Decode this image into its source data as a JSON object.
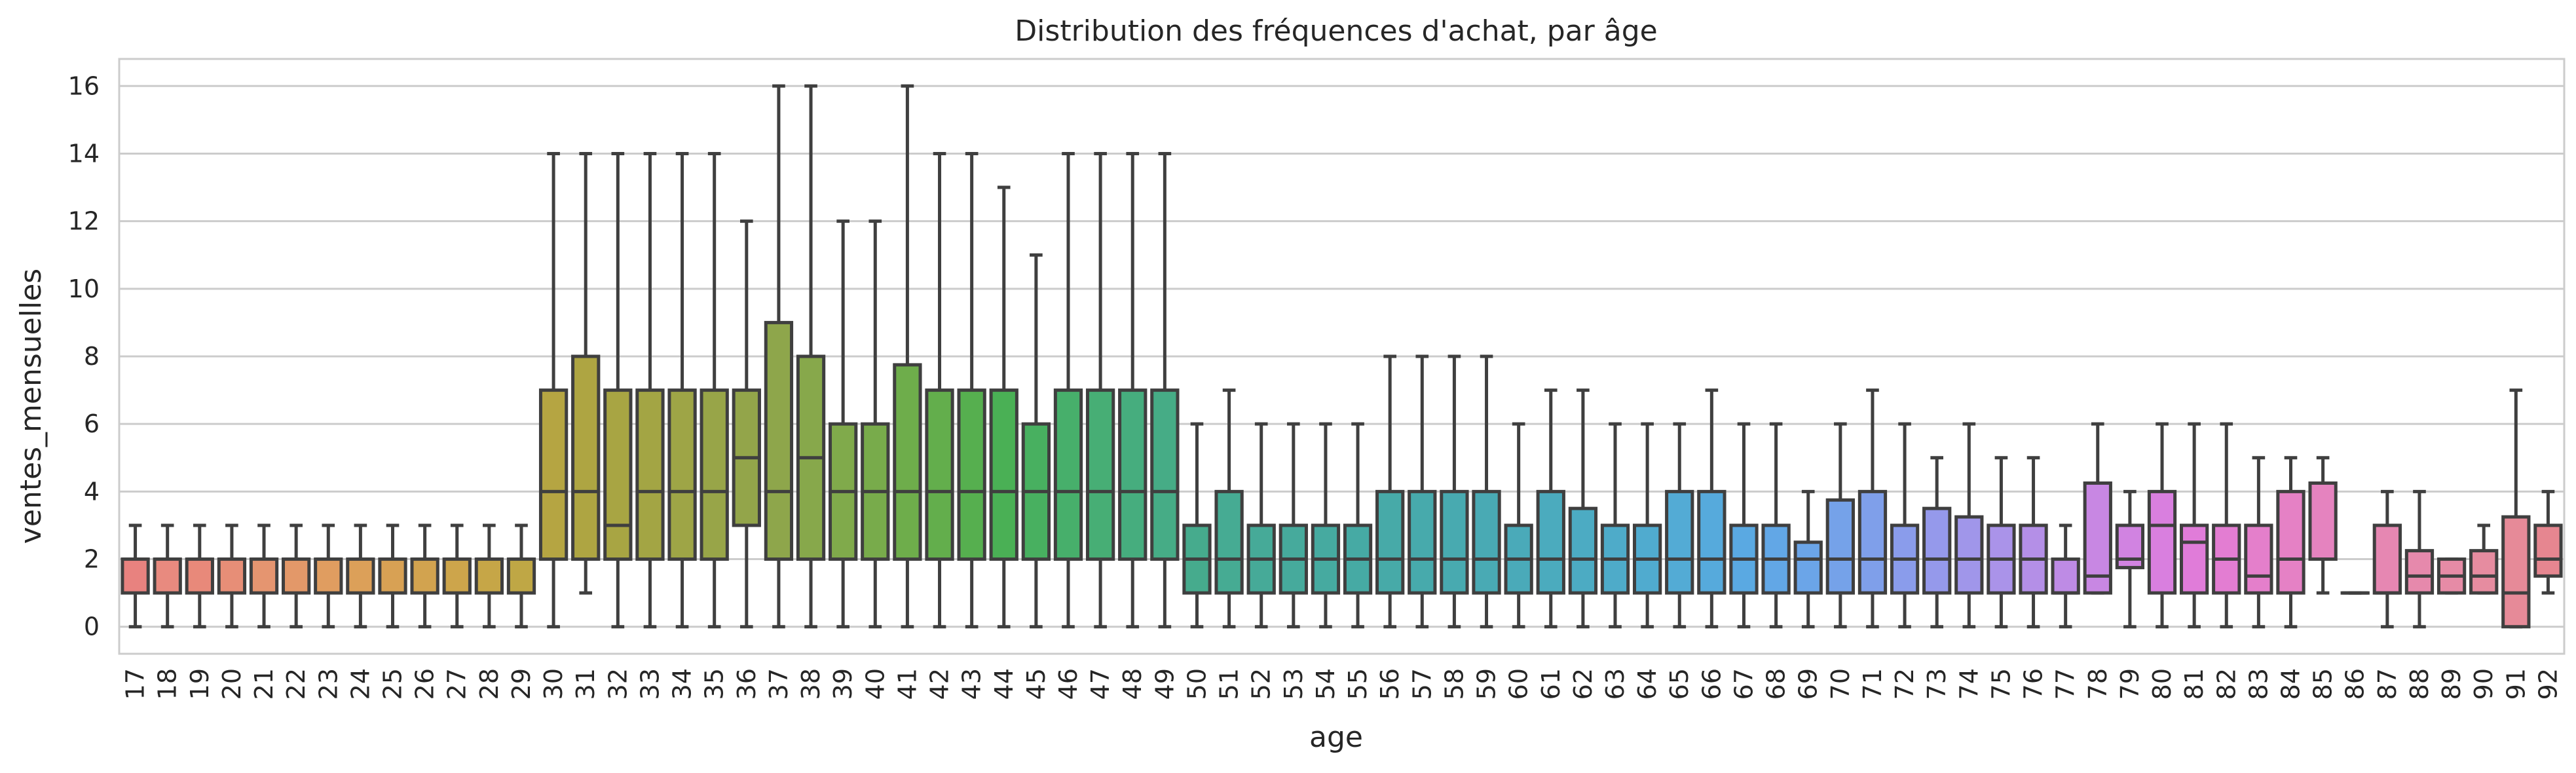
{
  "chart_data": {
    "type": "box",
    "title": "Distribution des fréquences d'achat, par âge",
    "xlabel": "age",
    "ylabel": "ventes_mensuelles",
    "ylim": [
      -0.8,
      16.8
    ],
    "yticks": [
      0,
      2,
      4,
      6,
      8,
      10,
      12,
      14,
      16
    ],
    "grid": "horizontal",
    "categories": [
      "17",
      "18",
      "19",
      "20",
      "21",
      "22",
      "23",
      "24",
      "25",
      "26",
      "27",
      "28",
      "29",
      "30",
      "31",
      "32",
      "33",
      "34",
      "35",
      "36",
      "37",
      "38",
      "39",
      "40",
      "41",
      "42",
      "43",
      "44",
      "45",
      "46",
      "47",
      "48",
      "49",
      "50",
      "51",
      "52",
      "53",
      "54",
      "55",
      "56",
      "57",
      "58",
      "59",
      "60",
      "61",
      "62",
      "63",
      "64",
      "65",
      "66",
      "67",
      "68",
      "69",
      "70",
      "71",
      "72",
      "73",
      "74",
      "75",
      "76",
      "77",
      "78",
      "79",
      "80",
      "81",
      "82",
      "83",
      "84",
      "85",
      "86",
      "87",
      "88",
      "89",
      "90",
      "91",
      "92"
    ],
    "boxes": [
      {
        "age": "17",
        "whislo": 0,
        "q1": 1,
        "med": 2,
        "q3": 2,
        "whishi": 3,
        "color": "#e8827f"
      },
      {
        "age": "18",
        "whislo": 0,
        "q1": 1,
        "med": 2,
        "q3": 2,
        "whishi": 3,
        "color": "#e88a7f"
      },
      {
        "age": "19",
        "whislo": 0,
        "q1": 1,
        "med": 2,
        "q3": 2,
        "whishi": 3,
        "color": "#e8897a"
      },
      {
        "age": "20",
        "whislo": 0,
        "q1": 1,
        "med": 2,
        "q3": 2,
        "whishi": 3,
        "color": "#e78e77"
      },
      {
        "age": "21",
        "whislo": 0,
        "q1": 1,
        "med": 2,
        "q3": 2,
        "whishi": 3,
        "color": "#e59570"
      },
      {
        "age": "22",
        "whislo": 0,
        "q1": 1,
        "med": 2,
        "q3": 2,
        "whishi": 3,
        "color": "#e39869"
      },
      {
        "age": "23",
        "whislo": 0,
        "q1": 1,
        "med": 2,
        "q3": 2,
        "whishi": 3,
        "color": "#e09d60"
      },
      {
        "age": "24",
        "whislo": 0,
        "q1": 1,
        "med": 2,
        "q3": 2,
        "whishi": 3,
        "color": "#dca059"
      },
      {
        "age": "25",
        "whislo": 0,
        "q1": 1,
        "med": 2,
        "q3": 2,
        "whishi": 3,
        "color": "#d8a154"
      },
      {
        "age": "26",
        "whislo": 0,
        "q1": 1,
        "med": 2,
        "q3": 2,
        "whishi": 3,
        "color": "#d2a34f"
      },
      {
        "age": "27",
        "whislo": 0,
        "q1": 1,
        "med": 2,
        "q3": 2,
        "whishi": 3,
        "color": "#cda54b"
      },
      {
        "age": "28",
        "whislo": 0,
        "q1": 1,
        "med": 2,
        "q3": 2,
        "whishi": 3,
        "color": "#c6a647"
      },
      {
        "age": "29",
        "whislo": 0,
        "q1": 1,
        "med": 2,
        "q3": 2,
        "whishi": 3,
        "color": "#bfa745"
      },
      {
        "age": "30",
        "whislo": 0,
        "q1": 2,
        "med": 4,
        "q3": 7,
        "whishi": 14,
        "color": "#b5a542"
      },
      {
        "age": "31",
        "whislo": 1,
        "q1": 2,
        "med": 4,
        "q3": 8,
        "whishi": 14,
        "color": "#aea542"
      },
      {
        "age": "32",
        "whislo": 0,
        "q1": 2,
        "med": 3,
        "q3": 7,
        "whishi": 14,
        "color": "#a8a543"
      },
      {
        "age": "33",
        "whislo": 0,
        "q1": 2,
        "med": 4,
        "q3": 7,
        "whishi": 14,
        "color": "#a3a544"
      },
      {
        "age": "34",
        "whislo": 0,
        "q1": 2,
        "med": 4,
        "q3": 7,
        "whishi": 14,
        "color": "#9ea546"
      },
      {
        "age": "35",
        "whislo": 0,
        "q1": 2,
        "med": 4,
        "q3": 7,
        "whishi": 14,
        "color": "#98a548"
      },
      {
        "age": "36",
        "whislo": 0,
        "q1": 3,
        "med": 5,
        "q3": 7,
        "whishi": 12,
        "color": "#93a54a"
      },
      {
        "age": "37",
        "whislo": 0,
        "q1": 2,
        "med": 4,
        "q3": 9,
        "whishi": 16,
        "color": "#8ea64b"
      },
      {
        "age": "38",
        "whislo": 0,
        "q1": 2,
        "med": 5,
        "q3": 8,
        "whishi": 16,
        "color": "#87a84b"
      },
      {
        "age": "39",
        "whislo": 0,
        "q1": 2,
        "med": 4,
        "q3": 6,
        "whishi": 12,
        "color": "#80aa4b"
      },
      {
        "age": "40",
        "whislo": 0,
        "q1": 2,
        "med": 4,
        "q3": 6,
        "whishi": 12,
        "color": "#78ab4b"
      },
      {
        "age": "41",
        "whislo": 0,
        "q1": 2,
        "med": 4,
        "q3": 7.75,
        "whishi": 16,
        "color": "#6ead4b"
      },
      {
        "age": "42",
        "whislo": 0,
        "q1": 2,
        "med": 4,
        "q3": 7,
        "whishi": 14,
        "color": "#63ae4c"
      },
      {
        "age": "43",
        "whislo": 0,
        "q1": 2,
        "med": 4,
        "q3": 7,
        "whishi": 14,
        "color": "#56af4f"
      },
      {
        "age": "44",
        "whislo": 0,
        "q1": 2,
        "med": 4,
        "q3": 7,
        "whishi": 13,
        "color": "#4ab055"
      },
      {
        "age": "45",
        "whislo": 0,
        "q1": 2,
        "med": 4,
        "q3": 6,
        "whishi": 11,
        "color": "#48b060"
      },
      {
        "age": "46",
        "whislo": 0,
        "q1": 2,
        "med": 4,
        "q3": 7,
        "whishi": 14,
        "color": "#47af6b"
      },
      {
        "age": "47",
        "whislo": 0,
        "q1": 2,
        "med": 4,
        "q3": 7,
        "whishi": 14,
        "color": "#47ae75"
      },
      {
        "age": "48",
        "whislo": 0,
        "q1": 2,
        "med": 4,
        "q3": 7,
        "whishi": 14,
        "color": "#46ad7e"
      },
      {
        "age": "49",
        "whislo": 0,
        "q1": 2,
        "med": 4,
        "q3": 7,
        "whishi": 14,
        "color": "#46ac86"
      },
      {
        "age": "50",
        "whislo": 0,
        "q1": 1,
        "med": 2,
        "q3": 3,
        "whishi": 6,
        "color": "#46ab8d"
      },
      {
        "age": "51",
        "whislo": 0,
        "q1": 1,
        "med": 2,
        "q3": 4,
        "whishi": 7,
        "color": "#46ab93"
      },
      {
        "age": "52",
        "whislo": 0,
        "q1": 1,
        "med": 2,
        "q3": 3,
        "whishi": 6,
        "color": "#46aa98"
      },
      {
        "age": "53",
        "whislo": 0,
        "q1": 1,
        "med": 2,
        "q3": 3,
        "whishi": 6,
        "color": "#46aa9c"
      },
      {
        "age": "54",
        "whislo": 0,
        "q1": 1,
        "med": 2,
        "q3": 3,
        "whishi": 6,
        "color": "#46aaa0"
      },
      {
        "age": "55",
        "whislo": 0,
        "q1": 1,
        "med": 2,
        "q3": 3,
        "whishi": 6,
        "color": "#46aaa4"
      },
      {
        "age": "56",
        "whislo": 0,
        "q1": 1,
        "med": 2,
        "q3": 4,
        "whishi": 8,
        "color": "#47aaa8"
      },
      {
        "age": "57",
        "whislo": 0,
        "q1": 1,
        "med": 2,
        "q3": 4,
        "whishi": 8,
        "color": "#47aaac"
      },
      {
        "age": "58",
        "whislo": 0,
        "q1": 1,
        "med": 2,
        "q3": 4,
        "whishi": 8,
        "color": "#48aab0"
      },
      {
        "age": "59",
        "whislo": 0,
        "q1": 1,
        "med": 2,
        "q3": 4,
        "whishi": 8,
        "color": "#49aab4"
      },
      {
        "age": "60",
        "whislo": 0,
        "q1": 1,
        "med": 2,
        "q3": 3,
        "whishi": 6,
        "color": "#4aaab9"
      },
      {
        "age": "61",
        "whislo": 0,
        "q1": 1,
        "med": 2,
        "q3": 4,
        "whishi": 7,
        "color": "#4babbe"
      },
      {
        "age": "62",
        "whislo": 0,
        "q1": 1,
        "med": 2,
        "q3": 3.5,
        "whishi": 7,
        "color": "#4cabc3"
      },
      {
        "age": "63",
        "whislo": 0,
        "q1": 1,
        "med": 2,
        "q3": 3,
        "whishi": 6,
        "color": "#4eabc9"
      },
      {
        "age": "64",
        "whislo": 0,
        "q1": 1,
        "med": 2,
        "q3": 3,
        "whishi": 6,
        "color": "#50abcf"
      },
      {
        "age": "65",
        "whislo": 0,
        "q1": 1,
        "med": 2,
        "q3": 4,
        "whishi": 6,
        "color": "#53abd5"
      },
      {
        "age": "66",
        "whislo": 0,
        "q1": 1,
        "med": 2,
        "q3": 4,
        "whishi": 7,
        "color": "#56aadc"
      },
      {
        "age": "67",
        "whislo": 0,
        "q1": 1,
        "med": 2,
        "q3": 3,
        "whishi": 6,
        "color": "#5aa9e2"
      },
      {
        "age": "68",
        "whislo": 0,
        "q1": 1,
        "med": 2,
        "q3": 3,
        "whishi": 6,
        "color": "#62a7e6"
      },
      {
        "age": "69",
        "whislo": 0,
        "q1": 1,
        "med": 2,
        "q3": 2.5,
        "whishi": 4,
        "color": "#6ba5e8"
      },
      {
        "age": "70",
        "whislo": 0,
        "q1": 1,
        "med": 2,
        "q3": 3.75,
        "whishi": 6,
        "color": "#75a2e9"
      },
      {
        "age": "71",
        "whislo": 0,
        "q1": 1,
        "med": 2,
        "q3": 4,
        "whishi": 7,
        "color": "#7f9fea"
      },
      {
        "age": "72",
        "whislo": 0,
        "q1": 1,
        "med": 2,
        "q3": 3,
        "whishi": 6,
        "color": "#8a9ceb"
      },
      {
        "age": "73",
        "whislo": 0,
        "q1": 1,
        "med": 2,
        "q3": 3.5,
        "whishi": 5,
        "color": "#9599eb"
      },
      {
        "age": "74",
        "whislo": 0,
        "q1": 1,
        "med": 2,
        "q3": 3.25,
        "whishi": 6,
        "color": "#a096ea"
      },
      {
        "age": "75",
        "whislo": 0,
        "q1": 1,
        "med": 2,
        "q3": 3,
        "whishi": 5,
        "color": "#aa93e9"
      },
      {
        "age": "76",
        "whislo": 0,
        "q1": 1,
        "med": 2,
        "q3": 3,
        "whishi": 5,
        "color": "#b48fe7"
      },
      {
        "age": "77",
        "whislo": 0,
        "q1": 1,
        "med": 1,
        "q3": 2,
        "whishi": 3,
        "color": "#be8be5"
      },
      {
        "age": "78",
        "whislo": 1,
        "q1": 1,
        "med": 1.5,
        "q3": 4.25,
        "whishi": 6,
        "color": "#c887e3"
      },
      {
        "age": "79",
        "whislo": 0,
        "q1": 1.75,
        "med": 2,
        "q3": 3,
        "whishi": 4,
        "color": "#d183e1"
      },
      {
        "age": "80",
        "whislo": 0,
        "q1": 1,
        "med": 3,
        "q3": 4,
        "whishi": 6,
        "color": "#d97fdf"
      },
      {
        "age": "81",
        "whislo": 0,
        "q1": 1,
        "med": 2.5,
        "q3": 3,
        "whishi": 6,
        "color": "#e07cd9"
      },
      {
        "age": "82",
        "whislo": 0,
        "q1": 1,
        "med": 2,
        "q3": 3,
        "whishi": 6,
        "color": "#e37dd2"
      },
      {
        "age": "83",
        "whislo": 0,
        "q1": 1,
        "med": 1.5,
        "q3": 3,
        "whishi": 5,
        "color": "#e47fcb"
      },
      {
        "age": "84",
        "whislo": 0,
        "q1": 1,
        "med": 2,
        "q3": 4,
        "whishi": 5,
        "color": "#e581c5"
      },
      {
        "age": "85",
        "whislo": 1,
        "q1": 2,
        "med": 2,
        "q3": 4.25,
        "whishi": 5,
        "color": "#e583bf"
      },
      {
        "age": "86",
        "whislo": 1,
        "q1": 1,
        "med": 1,
        "q3": 1,
        "whishi": 1,
        "color": "#e685b8"
      },
      {
        "age": "87",
        "whislo": 0,
        "q1": 1,
        "med": 1,
        "q3": 3,
        "whishi": 4,
        "color": "#e687b2"
      },
      {
        "age": "88",
        "whislo": 0,
        "q1": 1,
        "med": 1.5,
        "q3": 2.25,
        "whishi": 4,
        "color": "#e689ac"
      },
      {
        "age": "89",
        "whislo": 1,
        "q1": 1,
        "med": 1.5,
        "q3": 2,
        "whishi": 2,
        "color": "#e68ba6"
      },
      {
        "age": "90",
        "whislo": 1,
        "q1": 1,
        "med": 1.5,
        "q3": 2.25,
        "whishi": 3,
        "color": "#e68ca0"
      },
      {
        "age": "91",
        "whislo": 0,
        "q1": 0,
        "med": 1,
        "q3": 3.25,
        "whishi": 7,
        "color": "#e68a98"
      },
      {
        "age": "92",
        "whislo": 1,
        "q1": 1.5,
        "med": 2,
        "q3": 3,
        "whishi": 4,
        "color": "#e68690"
      }
    ]
  }
}
